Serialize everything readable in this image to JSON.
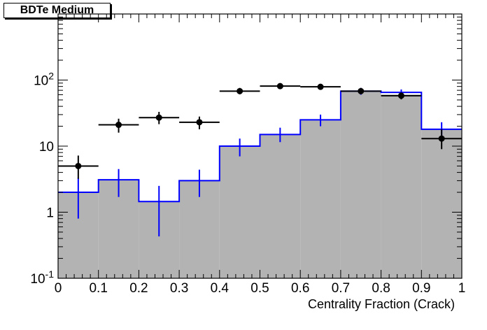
{
  "chart_data": {
    "type": "histogram",
    "title": "BDTe Medium",
    "xlabel": "Centrality Fraction (Crack)",
    "ylabel": "",
    "xlim": [
      0,
      1
    ],
    "ylim": [
      0.1,
      1000
    ],
    "yscale": "log",
    "bin_edges": [
      0,
      0.1,
      0.2,
      0.3,
      0.4,
      0.5,
      0.6,
      0.7,
      0.8,
      0.9,
      1.0
    ],
    "x_tick_labels": [
      "0",
      "0.1",
      "0.2",
      "0.3",
      "0.4",
      "0.5",
      "0.6",
      "0.7",
      "0.8",
      "0.9",
      "1"
    ],
    "y_tick_labels": [
      {
        "value": 0.1,
        "base": "10",
        "exp": "-1"
      },
      {
        "value": 1,
        "base": "1",
        "exp": ""
      },
      {
        "value": 10,
        "base": "10",
        "exp": ""
      },
      {
        "value": 100,
        "base": "10",
        "exp": "2"
      }
    ],
    "series": [
      {
        "type": "filled_histogram",
        "fill": "#b3b3b3",
        "values": [
          2.0,
          3.1,
          1.45,
          3.0,
          10.0,
          15.0,
          25.0,
          68.0,
          60.0,
          18.0
        ]
      },
      {
        "type": "step_histogram_with_errors",
        "color": "#0000ff",
        "values": [
          2.0,
          3.1,
          1.45,
          3.0,
          10.0,
          15.0,
          25.0,
          68.0,
          65.0,
          18.0
        ],
        "err_low": [
          0.8,
          1.7,
          0.43,
          1.7,
          7.0,
          11.5,
          20.0,
          60.0,
          58.0,
          14.0
        ],
        "err_high": [
          3.3,
          4.5,
          2.5,
          4.4,
          13.0,
          19.0,
          30.0,
          76.0,
          72.0,
          23.0
        ]
      },
      {
        "type": "points_with_errors",
        "color": "#000000",
        "values": [
          5.0,
          21.0,
          27.0,
          23.0,
          68.0,
          81.0,
          79.0,
          68.0,
          58.0,
          13.0
        ],
        "err_low": [
          3.2,
          16.0,
          21.5,
          18.0,
          61.0,
          73.0,
          71.0,
          61.0,
          51.0,
          9.0
        ],
        "err_high": [
          7.2,
          26.0,
          33.0,
          28.0,
          76.0,
          89.0,
          87.0,
          76.0,
          65.0,
          18.0
        ]
      }
    ]
  }
}
